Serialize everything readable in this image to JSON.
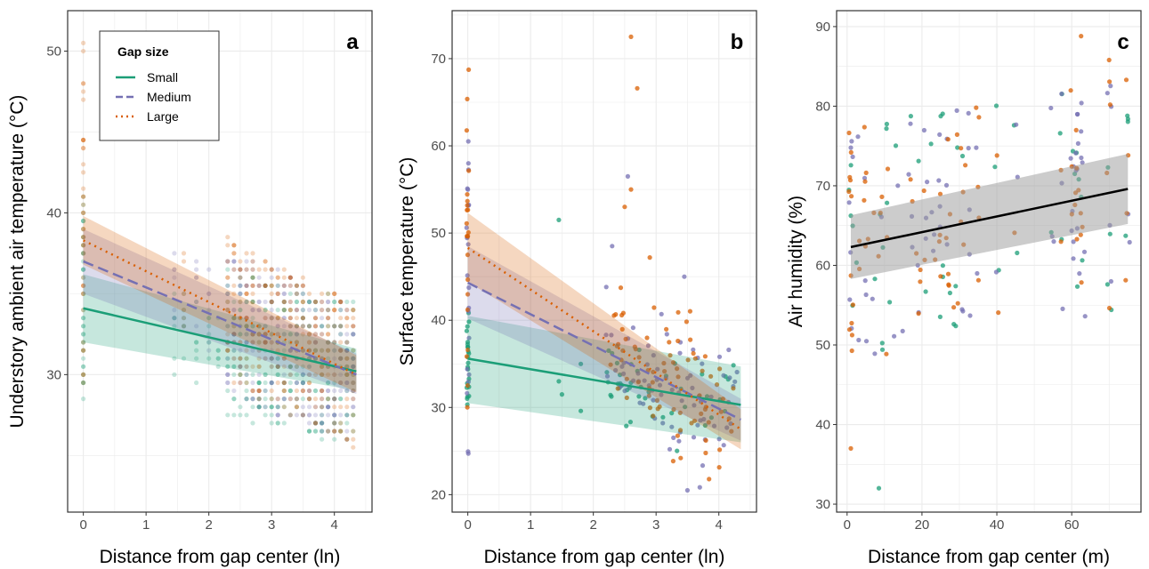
{
  "legend": {
    "title": "Gap size",
    "entries": [
      {
        "label": "Small",
        "color": "#1b9e77",
        "dash": "solid"
      },
      {
        "label": "Medium",
        "color": "#7570b3",
        "dash": "dashed"
      },
      {
        "label": "Large",
        "color": "#d95f02",
        "dash": "dotted"
      }
    ]
  },
  "chart_data": [
    {
      "type": "scatter",
      "panel": "a",
      "xlabel": "Distance from gap center (ln)",
      "ylabel": "Understory ambient air temperature (°C)",
      "xlim": [
        -0.25,
        4.6
      ],
      "ylim": [
        21.5,
        52.5
      ],
      "xticks": [
        0,
        1,
        2,
        3,
        4
      ],
      "yticks": [
        30,
        40,
        50
      ],
      "grid": true,
      "legend_position": "top-left",
      "point_opacity": 0.25,
      "columns_x": [
        0,
        1.45,
        1.6,
        1.8,
        2.0,
        2.15,
        2.3,
        2.4,
        2.5,
        2.6,
        2.7,
        2.8,
        2.9,
        3.0,
        3.1,
        3.2,
        3.3,
        3.4,
        3.5,
        3.6,
        3.7,
        3.8,
        3.9,
        4.0,
        4.1,
        4.2,
        4.3
      ],
      "series": [
        {
          "name": "Small",
          "color": "#1b9e77",
          "fit": {
            "x": [
              0,
              4.35
            ],
            "y": [
              34.1,
              30.2
            ],
            "lower": [
              32.0,
              29.0
            ],
            "upper": [
              36.2,
              31.6
            ]
          }
        },
        {
          "name": "Medium",
          "color": "#7570b3",
          "fit": {
            "x": [
              0,
              4.35
            ],
            "y": [
              37.0,
              30.0
            ],
            "lower": [
              35.0,
              28.8
            ],
            "upper": [
              39.0,
              31.3
            ]
          }
        },
        {
          "name": "Large",
          "color": "#d95f02",
          "fit": {
            "x": [
              0,
              4.35
            ],
            "y": [
              38.3,
              30.0
            ],
            "lower": [
              36.8,
              28.9
            ],
            "upper": [
              39.8,
              31.2
            ]
          }
        }
      ]
    },
    {
      "type": "scatter",
      "panel": "b",
      "xlabel": "Distance from gap center (ln)",
      "ylabel": "Surface temperature (°C)",
      "xlim": [
        -0.25,
        4.6
      ],
      "ylim": [
        18,
        75.5
      ],
      "xticks": [
        0,
        1,
        2,
        3,
        4
      ],
      "yticks": [
        20,
        30,
        40,
        50,
        60,
        70
      ],
      "grid": true,
      "point_opacity": 0.75,
      "series": [
        {
          "name": "Small",
          "color": "#1b9e77",
          "fit": {
            "x": [
              0,
              4.35
            ],
            "y": [
              35.6,
              30.3
            ],
            "lower": [
              30.5,
              26.0
            ],
            "upper": [
              40.5,
              34.7
            ]
          }
        },
        {
          "name": "Medium",
          "color": "#7570b3",
          "fit": {
            "x": [
              0,
              4.35
            ],
            "y": [
              44.3,
              28.6
            ],
            "lower": [
              40.2,
              26.2
            ],
            "upper": [
              48.5,
              31.0
            ]
          }
        },
        {
          "name": "Large",
          "color": "#d95f02",
          "fit": {
            "x": [
              0,
              4.35
            ],
            "y": [
              48.3,
              27.5
            ],
            "lower": [
              44.4,
              25.2
            ],
            "upper": [
              52.3,
              29.8
            ]
          }
        }
      ]
    },
    {
      "type": "scatter",
      "panel": "c",
      "xlabel": "Distance from gap center (m)",
      "ylabel": "Air humidity (%)",
      "xlim": [
        -2.8,
        78.5
      ],
      "ylim": [
        29,
        92
      ],
      "xticks": [
        0,
        20,
        40,
        60
      ],
      "yticks": [
        30,
        40,
        50,
        60,
        70,
        80,
        90
      ],
      "grid": true,
      "point_opacity": 0.75,
      "series": [
        {
          "name": "Small",
          "color": "#1b9e77"
        },
        {
          "name": "Medium",
          "color": "#7570b3"
        },
        {
          "name": "Large",
          "color": "#d95f02"
        }
      ],
      "fit": {
        "color": "#000000",
        "x": [
          1,
          75
        ],
        "y": [
          62.3,
          69.6
        ],
        "lower": [
          58.3,
          65.2
        ],
        "upper": [
          66.3,
          74.0
        ]
      }
    }
  ]
}
